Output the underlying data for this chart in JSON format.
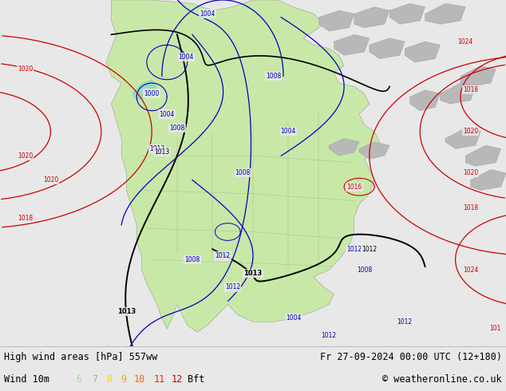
{
  "title_left": "High wind areas [hPa] 557ww",
  "title_right": "Fr 27-09-2024 00:00 UTC (12+180)",
  "subtitle_left": "Wind 10m",
  "copyright": "© weatheronline.co.uk",
  "legend_numbers": [
    "6",
    "7",
    "8",
    "9",
    "10",
    "11",
    "12"
  ],
  "legend_colors": [
    "#90ee90",
    "#7ccd7c",
    "#ffd700",
    "#ffa500",
    "#ff6600",
    "#ff2200",
    "#cc0000"
  ],
  "legend_suffix": "Bft",
  "bg_color": "#e8e8e8",
  "ocean_color": "#e8e8e8",
  "bottom_bar_color": "#d0d0d0",
  "isobar_blue": "#0000bb",
  "isobar_red": "#cc0000",
  "isobar_black": "#000000",
  "land_green": "#c8e8a8",
  "land_gray": "#b8b8b8",
  "wind_cyan": "#80d8c0",
  "figsize": [
    6.34,
    4.9
  ],
  "dpi": 100
}
